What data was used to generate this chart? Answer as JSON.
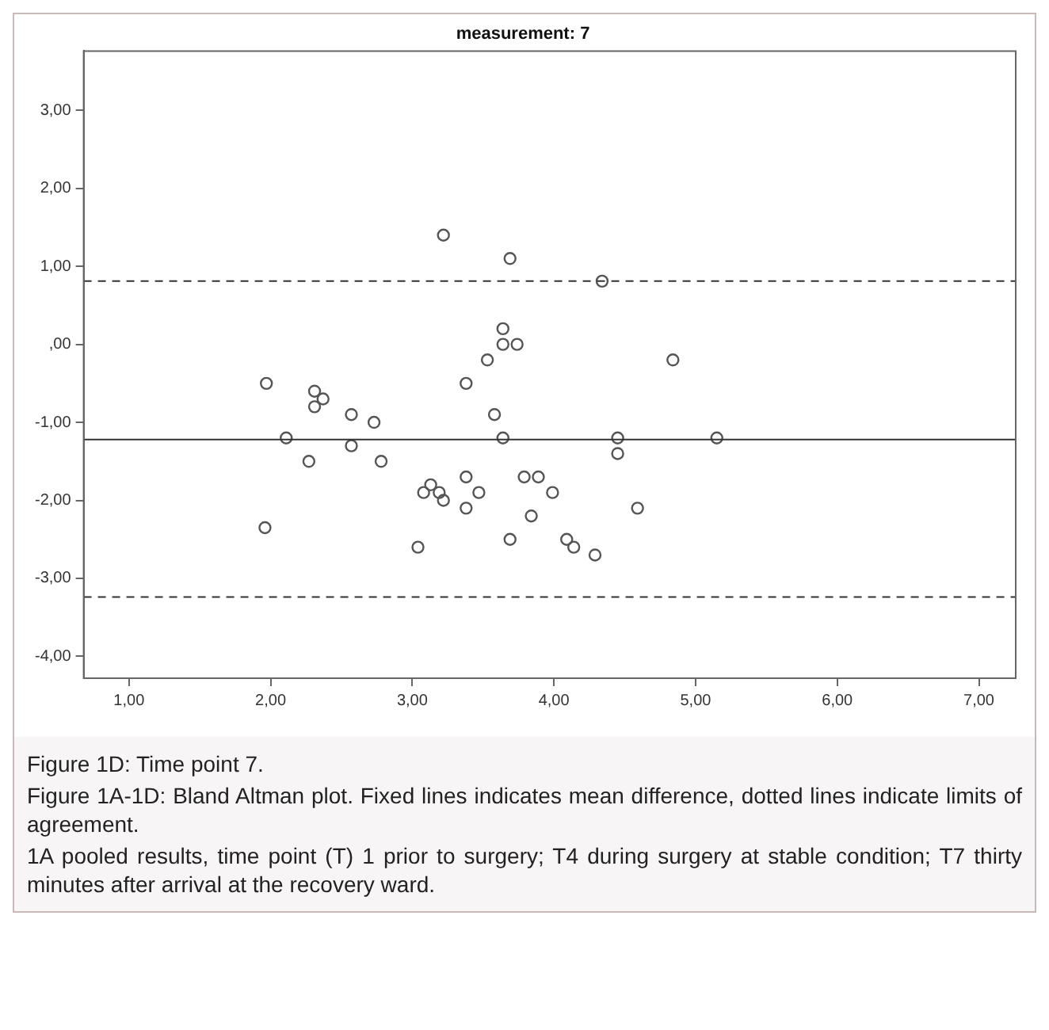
{
  "chart_data": {
    "type": "scatter",
    "title": "measurement: 7",
    "x": [
      1.97,
      1.96,
      2.11,
      2.27,
      2.31,
      2.31,
      2.37,
      2.57,
      2.57,
      2.73,
      2.78,
      3.04,
      3.08,
      3.13,
      3.19,
      3.22,
      3.22,
      3.38,
      3.38,
      3.38,
      3.47,
      3.69,
      4.34,
      3.64,
      3.64,
      3.74,
      3.53,
      4.84,
      3.58,
      3.64,
      4.45,
      5.15,
      4.45,
      3.79,
      3.89,
      3.99,
      4.59,
      3.84,
      3.69,
      4.09,
      4.14,
      4.29
    ],
    "values": [
      -0.5,
      -2.35,
      -1.2,
      -1.5,
      -0.6,
      -0.8,
      -0.7,
      -0.9,
      -1.3,
      -1.0,
      -1.5,
      -2.6,
      -1.9,
      -1.8,
      -1.9,
      -2.0,
      1.4,
      -0.5,
      -1.7,
      -2.1,
      -1.9,
      1.1,
      0.81,
      0.2,
      0.0,
      0.0,
      -0.2,
      -0.2,
      -0.9,
      -1.2,
      -1.2,
      -1.2,
      -1.4,
      -1.7,
      -1.7,
      -1.9,
      -2.1,
      -2.2,
      -2.5,
      -2.5,
      -2.6,
      -2.7
    ],
    "color": "#555555",
    "marker": "circle",
    "grid": false,
    "legend": false,
    "xlim": [
      0.68,
      7.26
    ],
    "ylim": [
      -4.28,
      3.76
    ],
    "xticks": [
      {
        "value": 1,
        "label": "1,00"
      },
      {
        "value": 2,
        "label": "2,00"
      },
      {
        "value": 3,
        "label": "3,00"
      },
      {
        "value": 4,
        "label": "4,00"
      },
      {
        "value": 5,
        "label": "5,00"
      },
      {
        "value": 6,
        "label": "6,00"
      },
      {
        "value": 7,
        "label": "7,00"
      }
    ],
    "yticks": [
      {
        "value": -4,
        "label": "-4,00"
      },
      {
        "value": -3,
        "label": "-3,00"
      },
      {
        "value": -2,
        "label": "-2,00"
      },
      {
        "value": -1,
        "label": "-1,00"
      },
      {
        "value": 0,
        "label": ",00"
      },
      {
        "value": 1,
        "label": "1,00"
      },
      {
        "value": 2,
        "label": "2,00"
      },
      {
        "value": 3,
        "label": "3,00"
      }
    ],
    "ref_lines": [
      {
        "axis": "y",
        "value": 0.81,
        "line_style": "dashed",
        "color": "#333333"
      },
      {
        "axis": "y",
        "value": -1.22,
        "line_style": "solid",
        "color": "#333333"
      },
      {
        "axis": "y",
        "value": -3.24,
        "line_style": "dashed",
        "color": "#333333"
      }
    ],
    "annotations": [
      "Figure 1D: Time point 7.",
      "Figure 1A-1D: Bland Altman plot. Fixed lines indicates mean difference, dotted lines indicate limits of agreement.",
      "1A pooled results, time point (T) 1 prior to surgery; T4 during surgery at stable condition; T7 thirty minutes after arrival at the recovery ward."
    ]
  }
}
